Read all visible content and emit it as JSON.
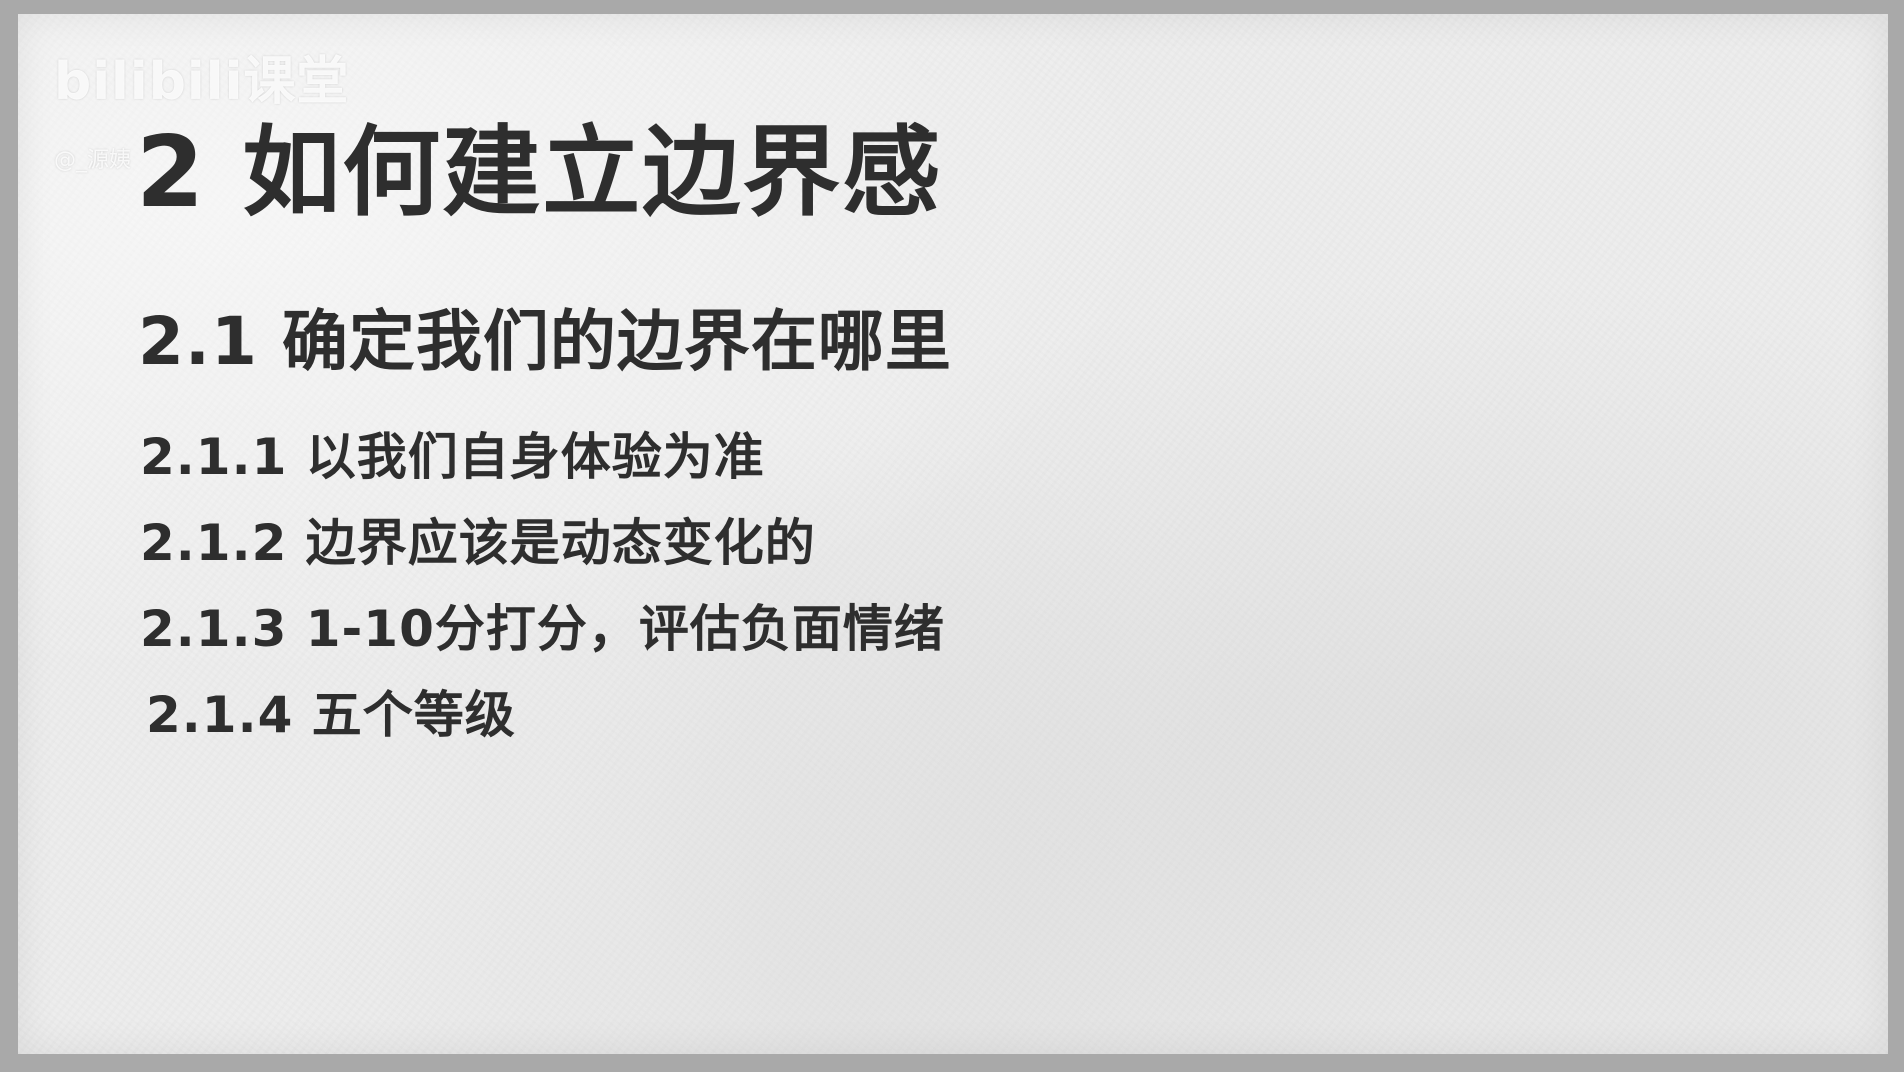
{
  "watermark": {
    "logo": "bilibili课堂",
    "user": "@_源姨"
  },
  "slide": {
    "title": "2 如何建立边界感",
    "subtitle": "2.1 确定我们的边界在哪里",
    "items": [
      "2.1.1 以我们自身体验为准",
      "2.1.2 边界应该是动态变化的",
      "2.1.3 1-10分打分，评估负面情绪",
      "2.1.4 五个等级"
    ]
  },
  "colors": {
    "text": "#2e2e2e",
    "paper": "#ededed",
    "frame": "#a9a9a9"
  }
}
